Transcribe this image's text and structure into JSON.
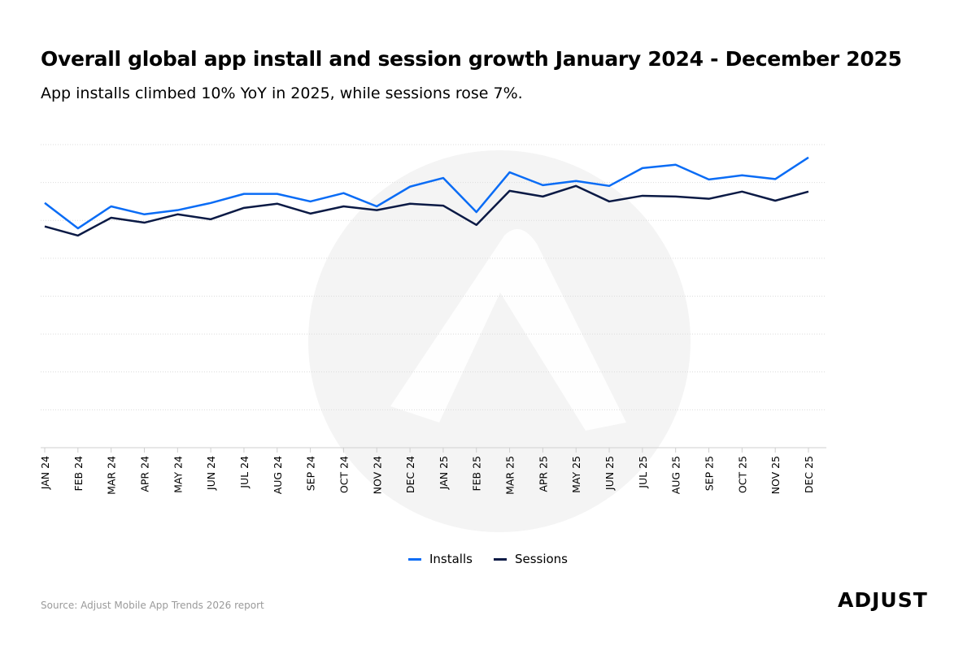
{
  "chart_data": {
    "type": "line",
    "title": "Overall global app install and session growth January 2024 - December 2025",
    "subtitle": "App installs climbed 10% YoY in 2025, while sessions rose 7%.",
    "xlabel": "",
    "ylabel": "",
    "ylim": [
      0,
      8
    ],
    "grid": true,
    "legend_position": "bottom-center",
    "categories": [
      "JAN 24",
      "FEB 24",
      "MAR 24",
      "APR 24",
      "MAY 24",
      "JUN 24",
      "JUL 24",
      "AUG 24",
      "SEP 24",
      "OCT 24",
      "NOV 24",
      "DEC 24",
      "JAN 25",
      "FEB 25",
      "MAR 25",
      "APR 25",
      "MAY 25",
      "JUN 25",
      "JUL 25",
      "AUG 25",
      "SEP 25",
      "OCT 25",
      "NOV 25",
      "DEC 25"
    ],
    "series": [
      {
        "name": "Installs",
        "color": "#0a6cf5",
        "values": [
          6.46,
          5.79,
          6.37,
          6.16,
          6.27,
          6.46,
          6.7,
          6.7,
          6.5,
          6.72,
          6.37,
          6.89,
          7.12,
          6.22,
          7.27,
          6.93,
          7.04,
          6.91,
          7.38,
          7.47,
          7.08,
          7.19,
          7.09,
          7.66
        ]
      },
      {
        "name": "Sessions",
        "color": "#0b1a45",
        "values": [
          5.84,
          5.6,
          6.07,
          5.94,
          6.16,
          6.03,
          6.33,
          6.44,
          6.18,
          6.37,
          6.27,
          6.44,
          6.39,
          5.88,
          6.78,
          6.63,
          6.91,
          6.5,
          6.65,
          6.63,
          6.57,
          6.76,
          6.52,
          6.76
        ]
      }
    ]
  },
  "source": "Source: Adjust Mobile App Trends 2026 report",
  "logo_text": "ADJUST"
}
